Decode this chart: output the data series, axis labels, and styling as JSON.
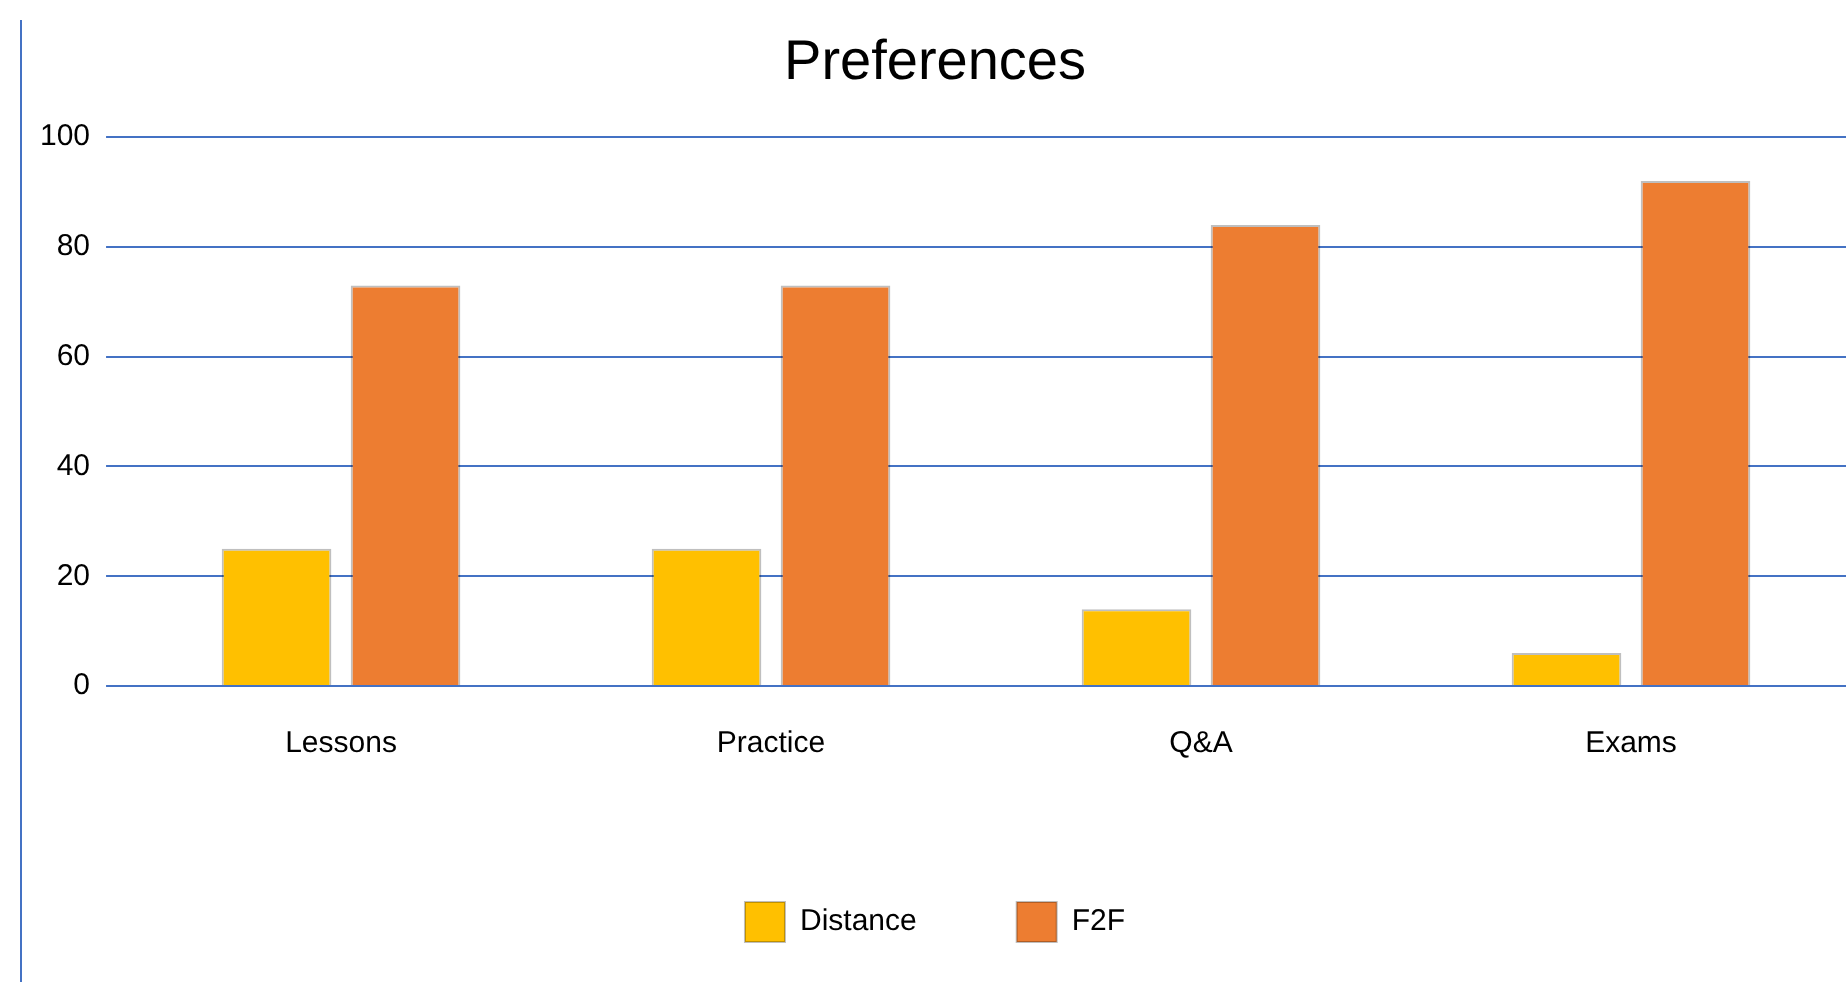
{
  "chart_data": {
    "type": "bar",
    "title": "Preferences",
    "categories": [
      "Lessons",
      "Practice",
      "Q&A",
      "Exams"
    ],
    "series": [
      {
        "name": "Distance",
        "color": "#ffc000",
        "values": [
          25,
          25,
          14,
          6
        ]
      },
      {
        "name": "F2F",
        "color": "#ed7d31",
        "values": [
          73,
          73,
          84,
          92
        ]
      }
    ],
    "ylim": [
      0,
      100
    ],
    "yticks": [
      0,
      20,
      40,
      60,
      80,
      100
    ],
    "grid": "y",
    "legend": "bottom"
  }
}
